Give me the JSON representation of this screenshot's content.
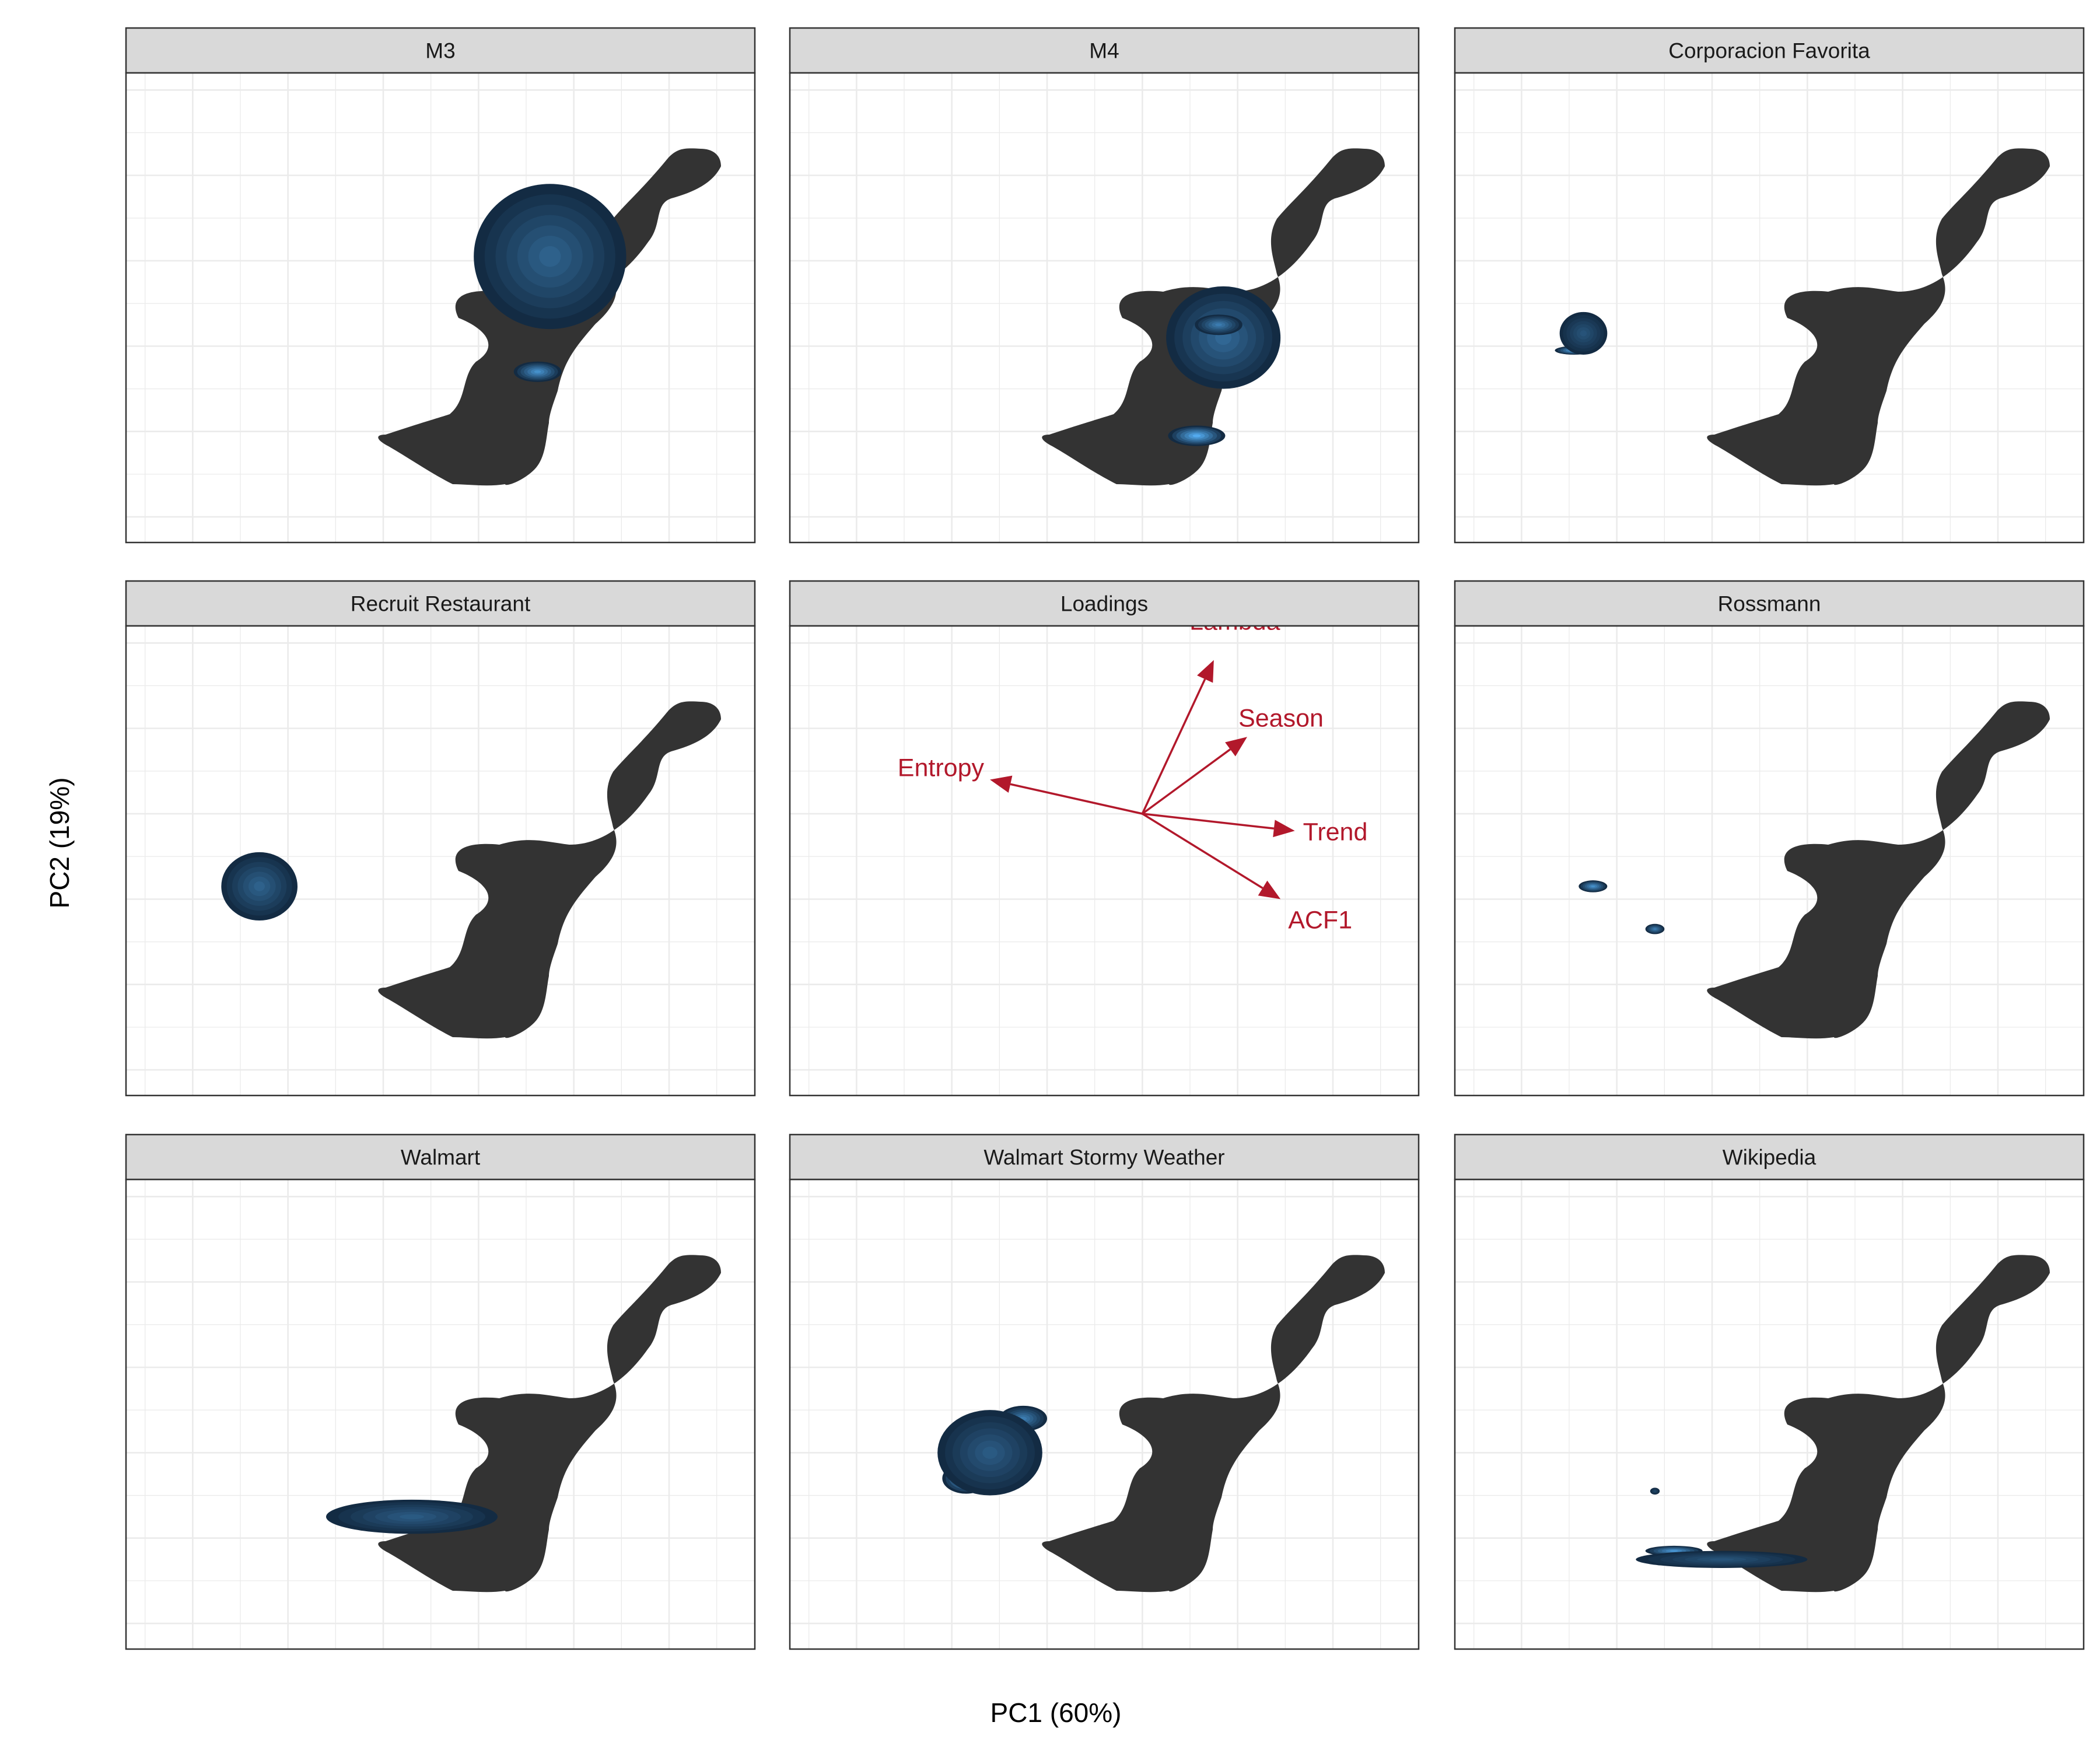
{
  "chart_data": {
    "type": "density-contour",
    "xlabel": "PC1 (60%)",
    "ylabel": "PC2 (19%)",
    "grid": true,
    "fill_scale": [
      "#132B43",
      "#56B1F7"
    ],
    "reference_fill": "#333333",
    "loadings_color": "#B2182B",
    "panels": [
      {
        "title": "M3",
        "kind": "density",
        "blobs": [
          {
            "x": 0.68,
            "y": -0.6,
            "rx": 0.3,
            "ry": 0.13,
            "intensity": 0.95
          },
          {
            "x": 0.75,
            "y": 0.05,
            "rx": 0.8,
            "ry": 0.85,
            "intensity": 0.4
          },
          {
            "x": 0.62,
            "y": -1.3,
            "rx": 0.25,
            "ry": 0.12,
            "intensity": 0.75
          }
        ]
      },
      {
        "title": "M4",
        "kind": "density",
        "blobs": [
          {
            "x": 0.57,
            "y": -2.05,
            "rx": 0.3,
            "ry": 0.12,
            "intensity": 0.95
          },
          {
            "x": 0.85,
            "y": -0.9,
            "rx": 0.6,
            "ry": 0.6,
            "intensity": 0.45
          },
          {
            "x": 0.8,
            "y": -0.75,
            "rx": 0.25,
            "ry": 0.12,
            "intensity": 0.6
          }
        ]
      },
      {
        "title": "Corporacion Favorita",
        "kind": "density",
        "blobs": [
          {
            "x": -2.45,
            "y": -1.05,
            "rx": 0.2,
            "ry": 0.05,
            "intensity": 0.9
          },
          {
            "x": -2.35,
            "y": -0.85,
            "rx": 0.25,
            "ry": 0.25,
            "intensity": 0.3
          }
        ]
      },
      {
        "title": "Recruit Restaurant",
        "kind": "density",
        "blobs": [
          {
            "x": -2.35,
            "y": -0.8,
            "rx": 0.22,
            "ry": 0.2,
            "intensity": 0.95
          },
          {
            "x": -2.3,
            "y": -0.85,
            "rx": 0.4,
            "ry": 0.4,
            "intensity": 0.4
          }
        ]
      },
      {
        "title": "Loadings",
        "kind": "loadings",
        "vectors": [
          {
            "name": "Lambda",
            "x": 0.75,
            "y": 1.8
          },
          {
            "name": "Season",
            "x": 1.1,
            "y": 0.9
          },
          {
            "name": "Entropy",
            "x": -1.6,
            "y": 0.4
          },
          {
            "name": "Trend",
            "x": 1.6,
            "y": -0.2
          },
          {
            "name": "ACF1",
            "x": 1.45,
            "y": -1.0
          }
        ]
      },
      {
        "title": "Rossmann",
        "kind": "density",
        "blobs": [
          {
            "x": -2.25,
            "y": -0.85,
            "rx": 0.15,
            "ry": 0.07,
            "intensity": 0.75
          },
          {
            "x": -1.6,
            "y": -1.35,
            "rx": 0.1,
            "ry": 0.06,
            "intensity": 0.6
          }
        ]
      },
      {
        "title": "Walmart",
        "kind": "density",
        "blobs": [
          {
            "x": -0.85,
            "y": -1.7,
            "rx": 0.4,
            "ry": 0.12,
            "intensity": 0.9
          },
          {
            "x": -0.7,
            "y": -1.75,
            "rx": 0.9,
            "ry": 0.2,
            "intensity": 0.35
          }
        ]
      },
      {
        "title": "Walmart Stormy Weather",
        "kind": "density",
        "blobs": [
          {
            "x": -1.85,
            "y": -1.3,
            "rx": 0.25,
            "ry": 0.18,
            "intensity": 0.95
          },
          {
            "x": -1.25,
            "y": -0.6,
            "rx": 0.25,
            "ry": 0.15,
            "intensity": 0.6
          },
          {
            "x": -1.6,
            "y": -1.0,
            "rx": 0.55,
            "ry": 0.5,
            "intensity": 0.35
          }
        ]
      },
      {
        "title": "Wikipedia",
        "kind": "density",
        "blobs": [
          {
            "x": -1.4,
            "y": -2.15,
            "rx": 0.3,
            "ry": 0.06,
            "intensity": 0.8
          },
          {
            "x": -0.9,
            "y": -2.25,
            "rx": 0.9,
            "ry": 0.1,
            "intensity": 0.3
          },
          {
            "x": -1.6,
            "y": -1.45,
            "rx": 0.05,
            "ry": 0.04,
            "intensity": 0.2
          }
        ]
      }
    ]
  }
}
